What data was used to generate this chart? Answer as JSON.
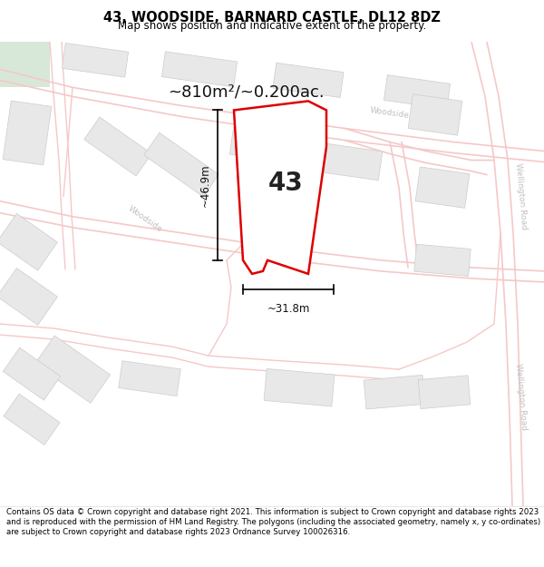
{
  "title": "43, WOODSIDE, BARNARD CASTLE, DL12 8DZ",
  "subtitle": "Map shows position and indicative extent of the property.",
  "footer": "Contains OS data © Crown copyright and database right 2021. This information is subject to Crown copyright and database rights 2023 and is reproduced with the permission of HM Land Registry. The polygons (including the associated geometry, namely x, y co-ordinates) are subject to Crown copyright and database rights 2023 Ordnance Survey 100026316.",
  "map_bg": "#ffffff",
  "road_color": "#f5c8c8",
  "road_lw": 1.0,
  "building_color": "#e8e8e8",
  "building_edge": "#cccccc",
  "plot_fill": "#ffffff",
  "plot_edge": "#dd0000",
  "plot_lw": 1.8,
  "area_text": "~810m²/~0.200ac.",
  "number_text": "43",
  "dim_h": "~46.9m",
  "dim_w": "~31.8m",
  "green_color": "#d8e8d8",
  "title_fontsize": 10.5,
  "subtitle_fontsize": 8.5,
  "footer_fontsize": 6.2,
  "road_label_color": "#c0c0c0",
  "road_label_size": 6.5
}
